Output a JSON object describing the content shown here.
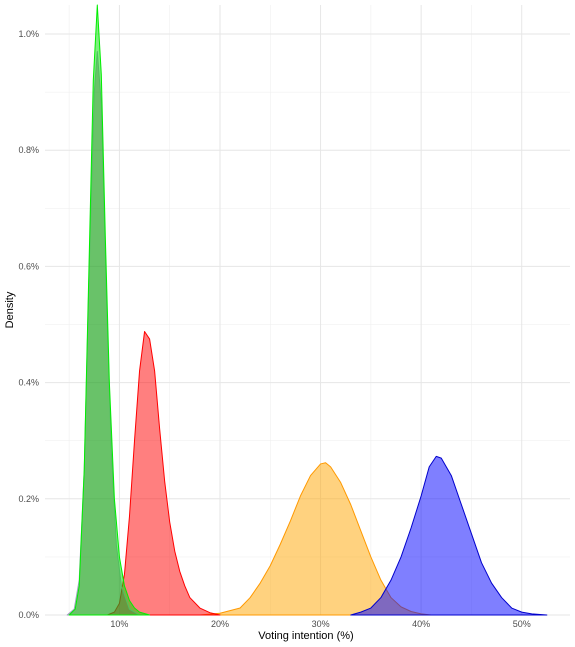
{
  "chart_data": {
    "type": "area",
    "title": "",
    "xlabel": "Voting intention (%)",
    "ylabel": "Density",
    "xlim": [
      2.6,
      54.8
    ],
    "ylim": [
      0,
      1.05
    ],
    "x_ticks": [
      10,
      20,
      30,
      40,
      50
    ],
    "x_tick_labels": [
      "10%",
      "20%",
      "30%",
      "40%",
      "50%"
    ],
    "y_ticks": [
      0,
      0.2,
      0.4,
      0.6,
      0.8,
      1.0
    ],
    "y_tick_labels": [
      "0.0%",
      "0.2%",
      "0.4%",
      "0.6%",
      "0.8%",
      "1.0%"
    ],
    "grid": true,
    "legend": "none",
    "series": [
      {
        "fill": "#ffa500",
        "stroke": "#ff9900",
        "opacity": 0.5,
        "points": [
          [
            18.0,
            0
          ],
          [
            20.0,
            0.003
          ],
          [
            22.0,
            0.012
          ],
          [
            23.0,
            0.03
          ],
          [
            24.0,
            0.055
          ],
          [
            25.0,
            0.085
          ],
          [
            26.0,
            0.122
          ],
          [
            27.0,
            0.162
          ],
          [
            28.0,
            0.205
          ],
          [
            29.0,
            0.24
          ],
          [
            30.0,
            0.26
          ],
          [
            30.5,
            0.262
          ],
          [
            31.0,
            0.255
          ],
          [
            32.0,
            0.228
          ],
          [
            33.0,
            0.19
          ],
          [
            34.0,
            0.145
          ],
          [
            35.0,
            0.1
          ],
          [
            36.0,
            0.06
          ],
          [
            37.0,
            0.03
          ],
          [
            38.0,
            0.014
          ],
          [
            39.0,
            0.006
          ],
          [
            40.0,
            0.002
          ],
          [
            41.0,
            0
          ]
        ]
      },
      {
        "fill": "#0000ff",
        "stroke": "#0000cc",
        "opacity": 0.5,
        "points": [
          [
            33.0,
            0
          ],
          [
            34.0,
            0.005
          ],
          [
            35.0,
            0.012
          ],
          [
            36.0,
            0.03
          ],
          [
            37.0,
            0.06
          ],
          [
            38.0,
            0.1
          ],
          [
            39.0,
            0.15
          ],
          [
            40.0,
            0.205
          ],
          [
            40.8,
            0.255
          ],
          [
            41.5,
            0.273
          ],
          [
            42.0,
            0.27
          ],
          [
            43.0,
            0.24
          ],
          [
            44.0,
            0.19
          ],
          [
            45.0,
            0.14
          ],
          [
            46.0,
            0.09
          ],
          [
            47.0,
            0.055
          ],
          [
            48.0,
            0.03
          ],
          [
            49.0,
            0.012
          ],
          [
            50.0,
            0.005
          ],
          [
            51.0,
            0.002
          ],
          [
            52.5,
            0
          ]
        ]
      },
      {
        "fill": "#ff0000",
        "stroke": "#ff0000",
        "opacity": 0.5,
        "points": [
          [
            8.8,
            0
          ],
          [
            9.5,
            0.005
          ],
          [
            10.0,
            0.02
          ],
          [
            10.5,
            0.07
          ],
          [
            11.0,
            0.17
          ],
          [
            11.5,
            0.3
          ],
          [
            12.0,
            0.42
          ],
          [
            12.5,
            0.488
          ],
          [
            13.0,
            0.475
          ],
          [
            13.5,
            0.42
          ],
          [
            14.0,
            0.32
          ],
          [
            14.5,
            0.23
          ],
          [
            15.0,
            0.16
          ],
          [
            15.5,
            0.11
          ],
          [
            16.0,
            0.075
          ],
          [
            16.5,
            0.05
          ],
          [
            17.0,
            0.03
          ],
          [
            18.0,
            0.012
          ],
          [
            19.0,
            0.004
          ],
          [
            20.0,
            0
          ]
        ]
      },
      {
        "fill": "#800080",
        "stroke": "#a0a0c0",
        "opacity": 0.35,
        "points": [
          [
            4.8,
            0
          ],
          [
            5.5,
            0.01
          ],
          [
            6.0,
            0.06
          ],
          [
            6.5,
            0.25
          ],
          [
            7.0,
            0.6
          ],
          [
            7.5,
            0.9
          ],
          [
            7.8,
            0.97
          ],
          [
            8.2,
            0.88
          ],
          [
            8.7,
            0.55
          ],
          [
            9.2,
            0.28
          ],
          [
            9.7,
            0.12
          ],
          [
            10.2,
            0.05
          ],
          [
            11.0,
            0.01
          ],
          [
            12.0,
            0
          ]
        ]
      },
      {
        "fill": "#00dd00",
        "stroke": "#00ee00",
        "opacity": 0.5,
        "points": [
          [
            5.0,
            0
          ],
          [
            5.6,
            0.01
          ],
          [
            6.0,
            0.05
          ],
          [
            6.5,
            0.25
          ],
          [
            7.0,
            0.62
          ],
          [
            7.4,
            0.92
          ],
          [
            7.8,
            1.05
          ],
          [
            8.2,
            0.93
          ],
          [
            8.6,
            0.65
          ],
          [
            9.0,
            0.4
          ],
          [
            9.5,
            0.2
          ],
          [
            10.0,
            0.1
          ],
          [
            10.5,
            0.05
          ],
          [
            11.0,
            0.025
          ],
          [
            11.5,
            0.012
          ],
          [
            12.0,
            0.005
          ],
          [
            13.0,
            0
          ]
        ]
      }
    ]
  }
}
